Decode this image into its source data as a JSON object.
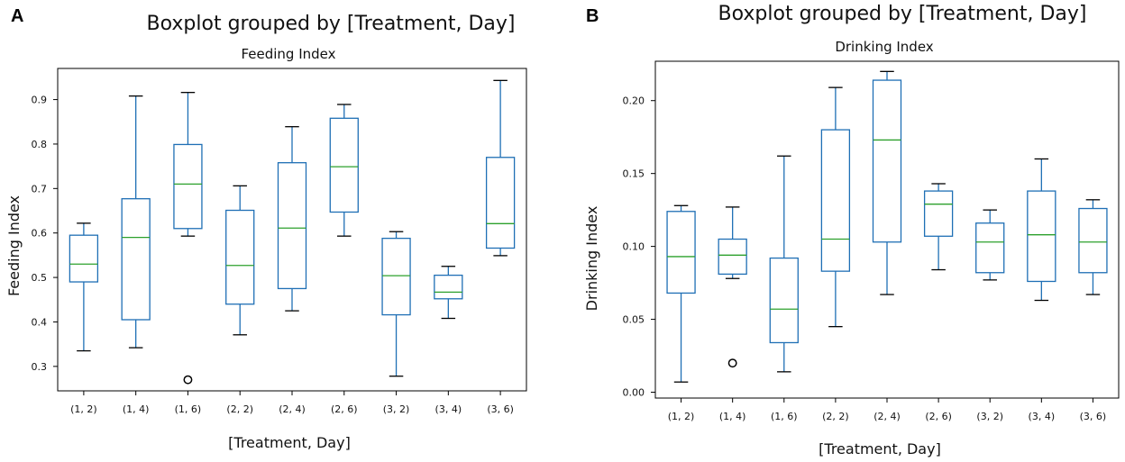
{
  "colors": {
    "box": "#1f6fb5",
    "median": "#2ca02c",
    "axis": "#000000"
  },
  "chart_data": [
    {
      "type": "boxplot",
      "panel_label": "A",
      "suptitle": "Boxplot grouped by [Treatment, Day]",
      "title": "Feeding Index",
      "xlabel": "[Treatment, Day]",
      "ylabel": "Feeding Index",
      "ylim": [
        0.245,
        0.97
      ],
      "yticks": [
        0.3,
        0.4,
        0.5,
        0.6,
        0.7,
        0.8,
        0.9
      ],
      "ytick_labels": [
        "0.3",
        "0.4",
        "0.5",
        "0.6",
        "0.7",
        "0.8",
        "0.9"
      ],
      "categories": [
        "(1, 2)",
        "(1, 4)",
        "(1, 6)",
        "(2, 2)",
        "(2, 4)",
        "(2, 6)",
        "(3, 2)",
        "(3, 4)",
        "(3, 6)"
      ],
      "boxes": [
        {
          "whislo": 0.335,
          "q1": 0.49,
          "med": 0.53,
          "q3": 0.595,
          "whishi": 0.622,
          "fliers": []
        },
        {
          "whislo": 0.342,
          "q1": 0.405,
          "med": 0.59,
          "q3": 0.677,
          "whishi": 0.908,
          "fliers": []
        },
        {
          "whislo": 0.593,
          "q1": 0.61,
          "med": 0.71,
          "q3": 0.799,
          "whishi": 0.916,
          "fliers": [
            0.27
          ]
        },
        {
          "whislo": 0.371,
          "q1": 0.44,
          "med": 0.527,
          "q3": 0.651,
          "whishi": 0.706,
          "fliers": []
        },
        {
          "whislo": 0.425,
          "q1": 0.475,
          "med": 0.611,
          "q3": 0.758,
          "whishi": 0.839,
          "fliers": []
        },
        {
          "whislo": 0.593,
          "q1": 0.647,
          "med": 0.749,
          "q3": 0.858,
          "whishi": 0.889,
          "fliers": []
        },
        {
          "whislo": 0.278,
          "q1": 0.416,
          "med": 0.504,
          "q3": 0.588,
          "whishi": 0.603,
          "fliers": []
        },
        {
          "whislo": 0.408,
          "q1": 0.452,
          "med": 0.467,
          "q3": 0.505,
          "whishi": 0.525,
          "fliers": []
        },
        {
          "whislo": 0.549,
          "q1": 0.566,
          "med": 0.621,
          "q3": 0.77,
          "whishi": 0.943,
          "fliers": []
        }
      ]
    },
    {
      "type": "boxplot",
      "panel_label": "B",
      "suptitle": "Boxplot grouped by [Treatment, Day]",
      "title": "Drinking Index",
      "xlabel": "[Treatment, Day]",
      "ylabel": "Drinking Index",
      "ylim": [
        -0.004,
        0.227
      ],
      "yticks": [
        0.0,
        0.05,
        0.1,
        0.15,
        0.2
      ],
      "ytick_labels": [
        "0.00",
        "0.05",
        "0.10",
        "0.15",
        "0.20"
      ],
      "categories": [
        "(1, 2)",
        "(1, 4)",
        "(1, 6)",
        "(2, 2)",
        "(2, 4)",
        "(2, 6)",
        "(3, 2)",
        "(3, 4)",
        "(3, 6)"
      ],
      "boxes": [
        {
          "whislo": 0.007,
          "q1": 0.068,
          "med": 0.093,
          "q3": 0.124,
          "whishi": 0.128,
          "fliers": []
        },
        {
          "whislo": 0.078,
          "q1": 0.081,
          "med": 0.094,
          "q3": 0.105,
          "whishi": 0.127,
          "fliers": [
            0.02
          ]
        },
        {
          "whislo": 0.014,
          "q1": 0.034,
          "med": 0.057,
          "q3": 0.092,
          "whishi": 0.162,
          "fliers": []
        },
        {
          "whislo": 0.045,
          "q1": 0.083,
          "med": 0.105,
          "q3": 0.18,
          "whishi": 0.209,
          "fliers": []
        },
        {
          "whislo": 0.067,
          "q1": 0.103,
          "med": 0.173,
          "q3": 0.214,
          "whishi": 0.22,
          "fliers": []
        },
        {
          "whislo": 0.084,
          "q1": 0.107,
          "med": 0.129,
          "q3": 0.138,
          "whishi": 0.143,
          "fliers": []
        },
        {
          "whislo": 0.077,
          "q1": 0.082,
          "med": 0.103,
          "q3": 0.116,
          "whishi": 0.125,
          "fliers": []
        },
        {
          "whislo": 0.063,
          "q1": 0.076,
          "med": 0.108,
          "q3": 0.138,
          "whishi": 0.16,
          "fliers": []
        },
        {
          "whislo": 0.067,
          "q1": 0.082,
          "med": 0.103,
          "q3": 0.126,
          "whishi": 0.132,
          "fliers": []
        }
      ]
    }
  ]
}
